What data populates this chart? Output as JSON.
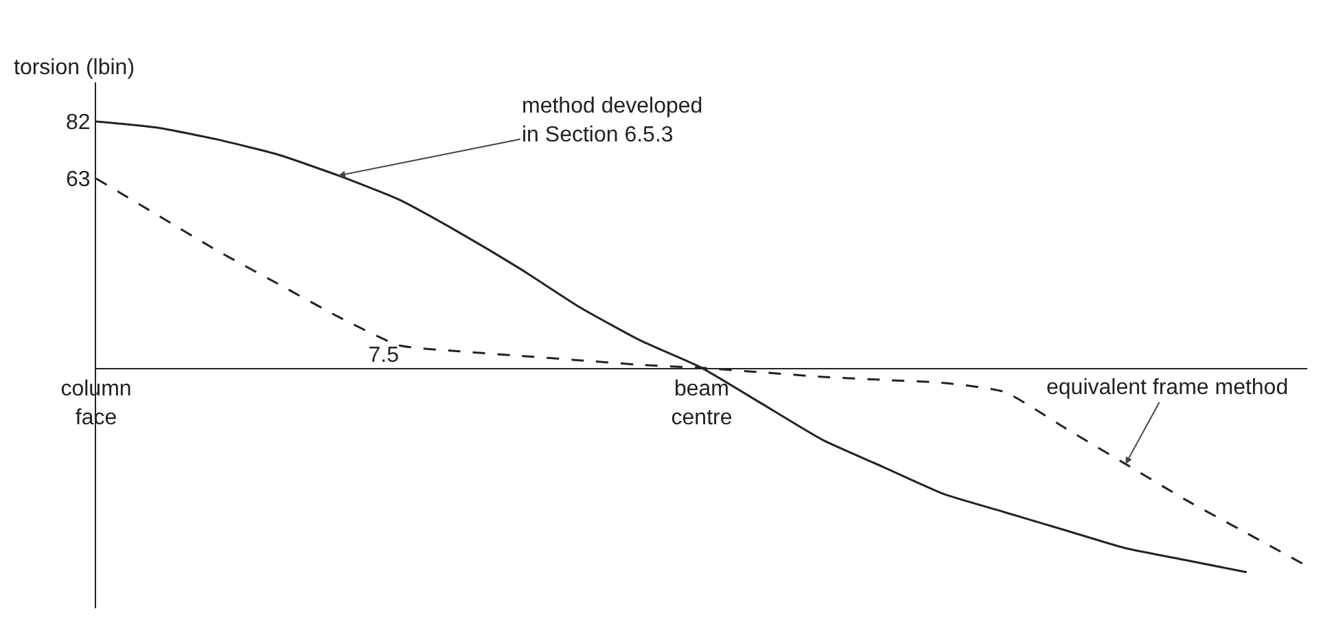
{
  "chart_data": {
    "type": "line",
    "ylabel": "torsion (lbin)",
    "categories": [
      "column face",
      null,
      null,
      null,
      null,
      null,
      null,
      null,
      null,
      null,
      "beam centre",
      null,
      null,
      null,
      null,
      null,
      null,
      null,
      null,
      null,
      null
    ],
    "ylim": [
      -80,
      95
    ],
    "yticks": [
      82,
      63
    ],
    "series": [
      {
        "name": "method developed\nin Section 6.5.3",
        "color": "#222222",
        "line_style": "solid",
        "values": [
          82,
          80,
          76,
          71,
          64,
          56,
          45,
          33,
          20,
          9,
          0,
          -12,
          -24,
          -33,
          -42,
          -48,
          -54,
          -60,
          -64,
          -68,
          null
        ]
      },
      {
        "name": "equivalent frame method",
        "color": "#222222",
        "line_style": "dashed",
        "values": [
          63,
          51,
          39,
          28,
          17,
          7.5,
          5.5,
          4,
          2.5,
          1,
          0,
          -1.5,
          -3,
          -4,
          -5,
          -8,
          -20,
          -32,
          -44,
          -55,
          -66
        ],
        "value_labels": [
          null,
          null,
          null,
          null,
          null,
          "7.5",
          null,
          null,
          null,
          null,
          null,
          null,
          null,
          null,
          null,
          null,
          null,
          null,
          null,
          null,
          null
        ]
      }
    ],
    "marker": "none"
  }
}
